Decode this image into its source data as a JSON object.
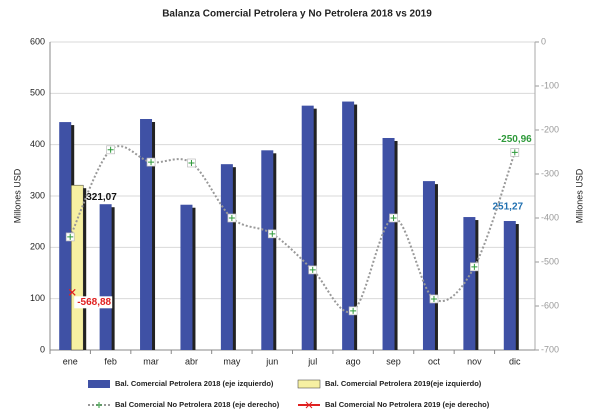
{
  "chart_data": {
    "type": "bar",
    "title": "Balanza Comercial Petrolera y No Petrolera 2018 vs 2019",
    "y_label": "Millones USD",
    "y2_label": "Millones USD",
    "categories": [
      "ene",
      "feb",
      "mar",
      "abr",
      "may",
      "jun",
      "jul",
      "ago",
      "sep",
      "oct",
      "nov",
      "dic"
    ],
    "ylim": [
      0,
      600
    ],
    "yticks": [
      0,
      100,
      200,
      300,
      400,
      500,
      600
    ],
    "y2lim": [
      -700,
      0
    ],
    "y2ticks": [
      0,
      -100,
      -200,
      -300,
      -400,
      -500,
      -600,
      -700
    ],
    "grid": true,
    "series": [
      {
        "name": "Bal. Comercial Petrolera 2018 (eje izquierdo)",
        "type": "bar",
        "color": "#3f51a5",
        "values": [
          444,
          284,
          450,
          283,
          362,
          389,
          476,
          484,
          413,
          329,
          259,
          251.27
        ],
        "value_labels": [
          null,
          null,
          null,
          null,
          null,
          null,
          null,
          null,
          null,
          null,
          null,
          "251,27"
        ]
      },
      {
        "name": "Bal. Comercial Petrolera 2019(eje izquierdo)",
        "type": "bar",
        "color": "#f6f0a2",
        "values": [
          321.07,
          null,
          null,
          null,
          null,
          null,
          null,
          null,
          null,
          null,
          null,
          null
        ],
        "value_labels": [
          "321,07",
          null,
          null,
          null,
          null,
          null,
          null,
          null,
          null,
          null,
          null,
          null
        ]
      },
      {
        "name": "Bal Comercial No Petrolera 2018 (eje derecho)",
        "type": "line",
        "axis": "y2",
        "color": "#999999",
        "values": [
          -443,
          -245,
          -273,
          -275,
          -400,
          -436,
          -518,
          -611,
          -400,
          -584,
          -511,
          -250.96
        ],
        "value_labels": [
          null,
          null,
          null,
          null,
          null,
          null,
          null,
          null,
          null,
          null,
          null,
          "-250,96"
        ]
      },
      {
        "name": "Bal Comercial No Petrolera 2019 (eje derecho)",
        "type": "line",
        "axis": "y2",
        "color": "#e02020",
        "values": [
          -568.88,
          null,
          null,
          null,
          null,
          null,
          null,
          null,
          null,
          null,
          null,
          null
        ],
        "value_labels": [
          "-568,88",
          null,
          null,
          null,
          null,
          null,
          null,
          null,
          null,
          null,
          null,
          null
        ]
      }
    ]
  }
}
